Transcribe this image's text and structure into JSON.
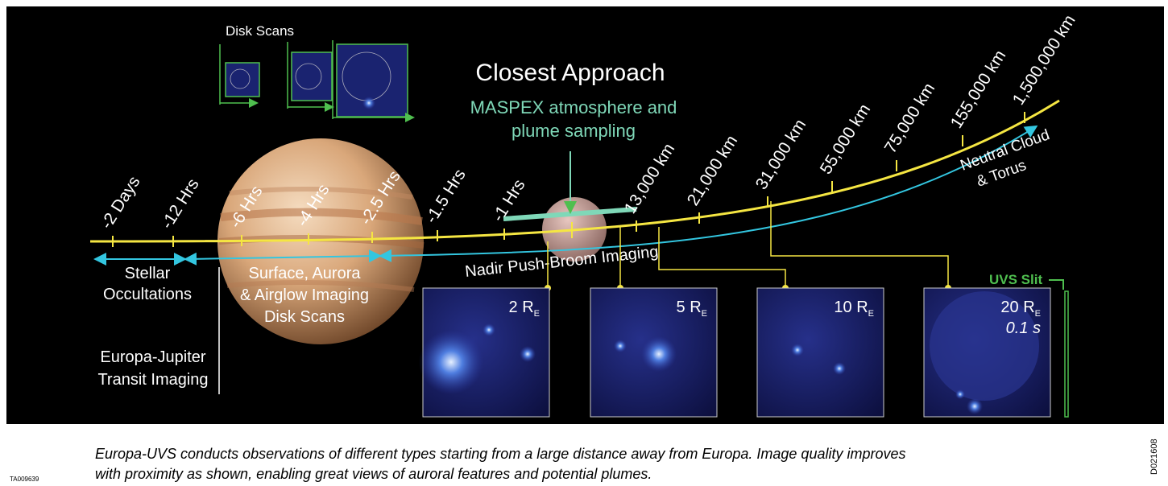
{
  "disk_scans_label": "Disk Scans",
  "closest_approach": "Closest Approach",
  "maspex_label": [
    "MASPEX atmosphere and",
    "plume sampling"
  ],
  "timeline": {
    "time_labels": [
      "-2 Days",
      "-12 Hrs",
      "-6 Hrs",
      "-4 Hrs",
      "-2.5 Hrs",
      "-1.5 Hrs",
      "-1 Hrs"
    ],
    "distance_labels": [
      "13,000 km",
      "21,000 km",
      "31,000 km",
      "55,000 km",
      "75,000 km",
      "155,000 km",
      "1,500,000 km"
    ]
  },
  "regions": {
    "stellar_occultations": [
      "Stellar",
      "Occultations"
    ],
    "surface_imaging": [
      "Surface, Aurora",
      "& Airglow Imaging",
      "Disk Scans"
    ],
    "nadir": "Nadir Push-Broom Imaging",
    "transit": [
      "Europa-Jupiter",
      "Transit Imaging"
    ],
    "neutral_cloud": [
      "Neutral Cloud",
      "& Torus"
    ]
  },
  "panels": [
    {
      "label": "2 R",
      "subscript": "E"
    },
    {
      "label": "5 R",
      "subscript": "E"
    },
    {
      "label": "10 R",
      "subscript": "E"
    },
    {
      "label": "20 R",
      "subscript": "E",
      "exposure": "0.1 s"
    }
  ],
  "uvs_slit": "UVS Slit",
  "caption": [
    "Europa-UVS conducts observations of different types starting from a large distance away from Europa. Image quality improves",
    "with proximity as shown, enabling great views of auroral features and potential plumes."
  ],
  "ids": {
    "left": "TA009639",
    "right": "D021608"
  }
}
